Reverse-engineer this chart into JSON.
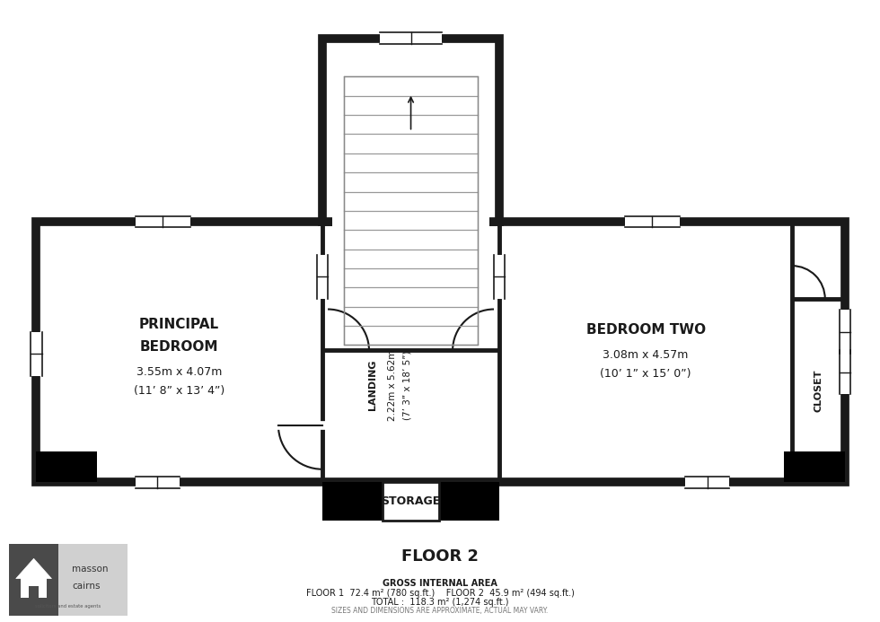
{
  "bg_color": "#ffffff",
  "wall_color": "#1a1a1a",
  "wall_lw": 7,
  "inner_wall_lw": 3.5,
  "floor2_label": "FLOOR 2",
  "gross_area_line1": "GROSS INTERNAL AREA",
  "gross_area_line2": "FLOOR 1  72.4 m² (780 sq.ft.)    FLOOR 2  45.9 m² (494 sq.ft.)",
  "gross_area_line3": "TOTAL :  118.3 m² (1,274 sq.ft.)",
  "gross_area_line4": "SIZES AND DIMENSIONS ARE APPROXIMATE, ACTUAL MAY VARY.",
  "rooms": {
    "principal_bedroom": {
      "label_line1": "PRINCIPAL",
      "label_line2": "BEDROOM",
      "label_line3": "3.55m x 4.07m",
      "label_line4": "(11’ 8” x 13’ 4”)"
    },
    "landing": {
      "label_line1": "LANDING",
      "label_line2": "2.22m x 5.62m",
      "label_line3": "(7’ 3” x 18’ 5”)"
    },
    "bedroom_two": {
      "label_line1": "BEDROOM TWO",
      "label_line2": "3.08m x 4.57m",
      "label_line3": "(10’ 1” x 15’ 0”)"
    },
    "closet": {
      "label": "CLOSET"
    },
    "storage": {
      "label": "STORAGE"
    }
  }
}
